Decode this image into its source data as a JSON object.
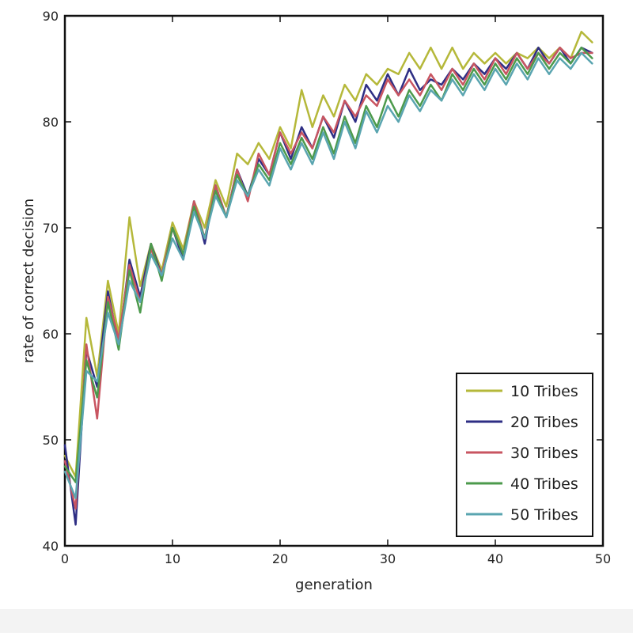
{
  "chart_data": {
    "type": "line",
    "title": "",
    "xlabel": "generation",
    "ylabel": "rate of correct decision",
    "xlim": [
      0,
      50
    ],
    "ylim": [
      40,
      90
    ],
    "xticks": [
      "0",
      "10",
      "20",
      "30",
      "40",
      "50"
    ],
    "yticks": [
      "40",
      "50",
      "60",
      "70",
      "80",
      "90"
    ],
    "grid": false,
    "legend_position": "bottom-right",
    "x": [
      0,
      1,
      2,
      3,
      4,
      5,
      6,
      7,
      8,
      9,
      10,
      11,
      12,
      13,
      14,
      15,
      16,
      17,
      18,
      19,
      20,
      21,
      22,
      23,
      24,
      25,
      26,
      27,
      28,
      29,
      30,
      31,
      32,
      33,
      34,
      35,
      36,
      37,
      38,
      39,
      40,
      41,
      42,
      43,
      44,
      45,
      46,
      47,
      48,
      49
    ],
    "series": [
      {
        "name": "10 Tribes",
        "color": "#b5b83a",
        "values": [
          48.5,
          46.5,
          61.5,
          56.0,
          65.0,
          60.0,
          71.0,
          64.5,
          68.5,
          66.0,
          70.5,
          68.0,
          72.5,
          70.0,
          74.5,
          72.0,
          77.0,
          76.0,
          78.0,
          76.5,
          79.5,
          77.5,
          83.0,
          79.5,
          82.5,
          80.5,
          83.5,
          82.0,
          84.5,
          83.5,
          85.0,
          84.5,
          86.5,
          85.0,
          87.0,
          85.0,
          87.0,
          85.0,
          86.5,
          85.5,
          86.5,
          85.5,
          86.5,
          86.0,
          87.0,
          86.0,
          87.0,
          86.0,
          88.5,
          87.5
        ]
      },
      {
        "name": "20 Tribes",
        "color": "#2e2e84",
        "values": [
          49.5,
          42.0,
          58.5,
          55.0,
          64.0,
          59.0,
          67.0,
          63.5,
          68.5,
          65.5,
          70.0,
          67.0,
          72.5,
          68.5,
          74.0,
          71.0,
          75.5,
          73.0,
          76.5,
          75.0,
          79.0,
          76.5,
          79.5,
          77.5,
          80.5,
          78.5,
          82.0,
          80.0,
          83.5,
          82.0,
          84.5,
          82.5,
          85.0,
          83.0,
          84.0,
          83.5,
          85.0,
          84.0,
          85.5,
          84.5,
          86.0,
          85.0,
          86.5,
          85.0,
          87.0,
          85.5,
          87.0,
          85.5,
          87.0,
          86.5
        ]
      },
      {
        "name": "30 Tribes",
        "color": "#c85561",
        "values": [
          48.0,
          43.5,
          59.0,
          52.0,
          63.5,
          59.5,
          66.5,
          63.0,
          68.0,
          65.5,
          70.0,
          67.5,
          72.5,
          69.0,
          74.0,
          71.0,
          75.5,
          72.5,
          77.0,
          75.0,
          79.0,
          77.0,
          79.0,
          77.5,
          80.5,
          79.0,
          82.0,
          80.5,
          82.5,
          81.5,
          84.0,
          82.5,
          84.0,
          82.5,
          84.5,
          83.0,
          85.0,
          83.5,
          85.5,
          84.0,
          86.0,
          84.5,
          86.5,
          85.0,
          86.5,
          85.5,
          87.0,
          86.0,
          86.5,
          86.5
        ]
      },
      {
        "name": "40 Tribes",
        "color": "#4c9a4c",
        "values": [
          47.5,
          46.0,
          57.5,
          54.0,
          63.0,
          58.5,
          66.0,
          62.0,
          68.5,
          65.0,
          70.0,
          67.5,
          72.0,
          69.0,
          73.5,
          71.0,
          75.0,
          73.0,
          76.0,
          74.5,
          78.0,
          76.0,
          78.5,
          76.5,
          79.5,
          77.0,
          80.5,
          78.0,
          81.5,
          79.5,
          82.5,
          80.5,
          83.0,
          81.5,
          83.5,
          82.0,
          84.5,
          83.0,
          85.0,
          83.5,
          85.5,
          84.0,
          86.0,
          84.5,
          86.5,
          85.0,
          86.5,
          85.5,
          87.0,
          86.0
        ]
      },
      {
        "name": "50 Tribes",
        "color": "#5aa5b0",
        "values": [
          47.0,
          44.5,
          56.5,
          55.5,
          62.0,
          59.0,
          65.0,
          63.0,
          67.5,
          65.5,
          69.0,
          67.0,
          71.5,
          69.0,
          73.0,
          71.0,
          74.5,
          73.0,
          75.5,
          74.0,
          77.5,
          75.5,
          78.0,
          76.0,
          79.0,
          76.5,
          80.0,
          77.5,
          81.0,
          79.0,
          81.5,
          80.0,
          82.5,
          81.0,
          83.0,
          82.0,
          84.0,
          82.5,
          84.5,
          83.0,
          85.0,
          83.5,
          85.5,
          84.0,
          86.0,
          84.5,
          86.0,
          85.0,
          86.5,
          85.5
        ]
      }
    ]
  }
}
